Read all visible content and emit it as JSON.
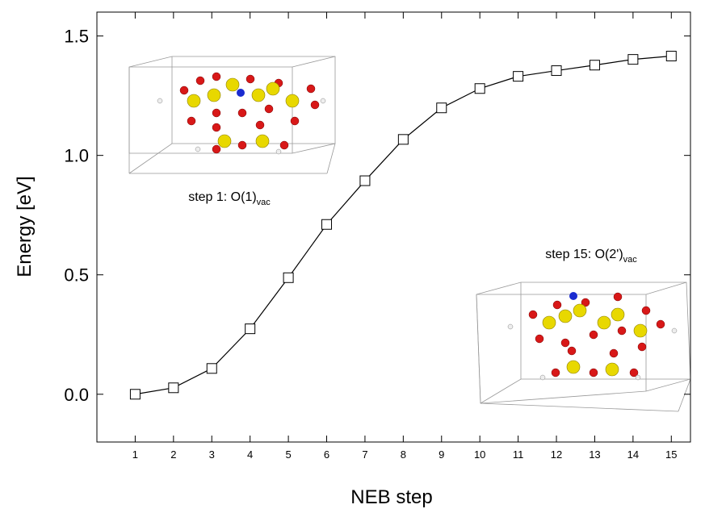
{
  "chart_data": {
    "type": "line",
    "x_label": "NEB step",
    "y_label": "Energy [eV]",
    "x": [
      1,
      2,
      3,
      4,
      5,
      6,
      7,
      8,
      9,
      10,
      11,
      12,
      13,
      14,
      15
    ],
    "series": [
      {
        "color": "#000000",
        "values": [
          0,
          0.027,
          0.108,
          0.274,
          0.488,
          0.711,
          0.894,
          1.067,
          1.199,
          1.28,
          1.331,
          1.355,
          1.378,
          1.402,
          1.416
        ]
      }
    ],
    "xlim": [
      0,
      15.5
    ],
    "xticks": [
      1,
      2,
      3,
      4,
      5,
      6,
      7,
      8,
      9,
      10,
      11,
      12,
      13,
      14,
      15
    ],
    "ylim": [
      -0.2,
      1.6
    ],
    "yticks": [
      {
        "value": 0,
        "label": "0.0"
      },
      {
        "value": 0.5,
        "label": "0.5"
      },
      {
        "value": 1,
        "label": "1.0"
      },
      {
        "value": 1.5,
        "label": "1.5"
      }
    ],
    "annotations": [
      {
        "text": "step 1: O(1)",
        "subscript": "vac"
      },
      {
        "text": "step 15: O(2')",
        "subscript": "vac"
      }
    ]
  }
}
